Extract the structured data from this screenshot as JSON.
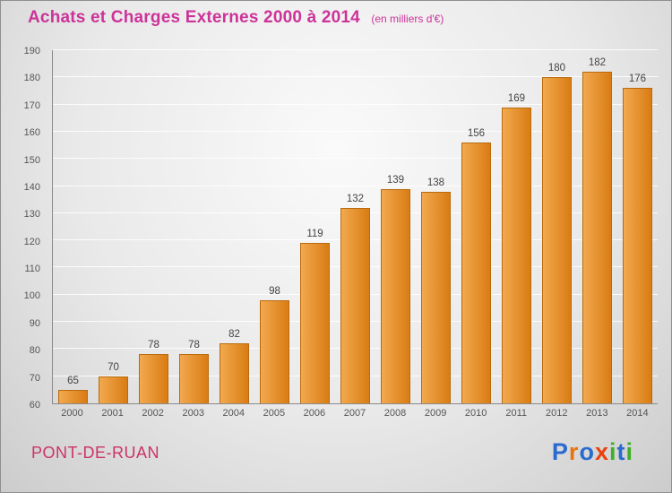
{
  "chart_data": {
    "type": "bar",
    "title": "Achats et Charges Externes 2000 à 2014",
    "subtitle": "(en milliers d'€)",
    "categories": [
      "2000",
      "2001",
      "2002",
      "2003",
      "2004",
      "2005",
      "2006",
      "2007",
      "2008",
      "2009",
      "2010",
      "2011",
      "2012",
      "2013",
      "2014"
    ],
    "values": [
      65,
      70,
      78,
      78,
      82,
      98,
      119,
      132,
      139,
      138,
      156,
      169,
      180,
      182,
      176
    ],
    "xlabel": "",
    "ylabel": "",
    "ylim": [
      60,
      190
    ],
    "ytick_step": 10,
    "grid": true,
    "legend": "none",
    "bar_color_start": "#f2a94f",
    "bar_color_end": "#d97c13",
    "bar_border_color": "#b96a0d"
  },
  "colors": {
    "title": "#cc3399",
    "subtitle": "#cc3399",
    "commune": "#cc3366",
    "value_label": "#444444",
    "tick_label": "#555555"
  },
  "footer": {
    "commune": "PONT-DE-RUAN",
    "logo_letters": [
      {
        "ch": "P",
        "color": "#2b6bd0"
      },
      {
        "ch": "r",
        "color": "#e8750f"
      },
      {
        "ch": "o",
        "color": "#2b6bd0"
      },
      {
        "ch": "x",
        "color": "#e8420f"
      },
      {
        "ch": "i",
        "color": "#3fae29"
      },
      {
        "ch": "t",
        "color": "#2b6bd0"
      },
      {
        "ch": "i",
        "color": "#3fae29"
      }
    ]
  }
}
